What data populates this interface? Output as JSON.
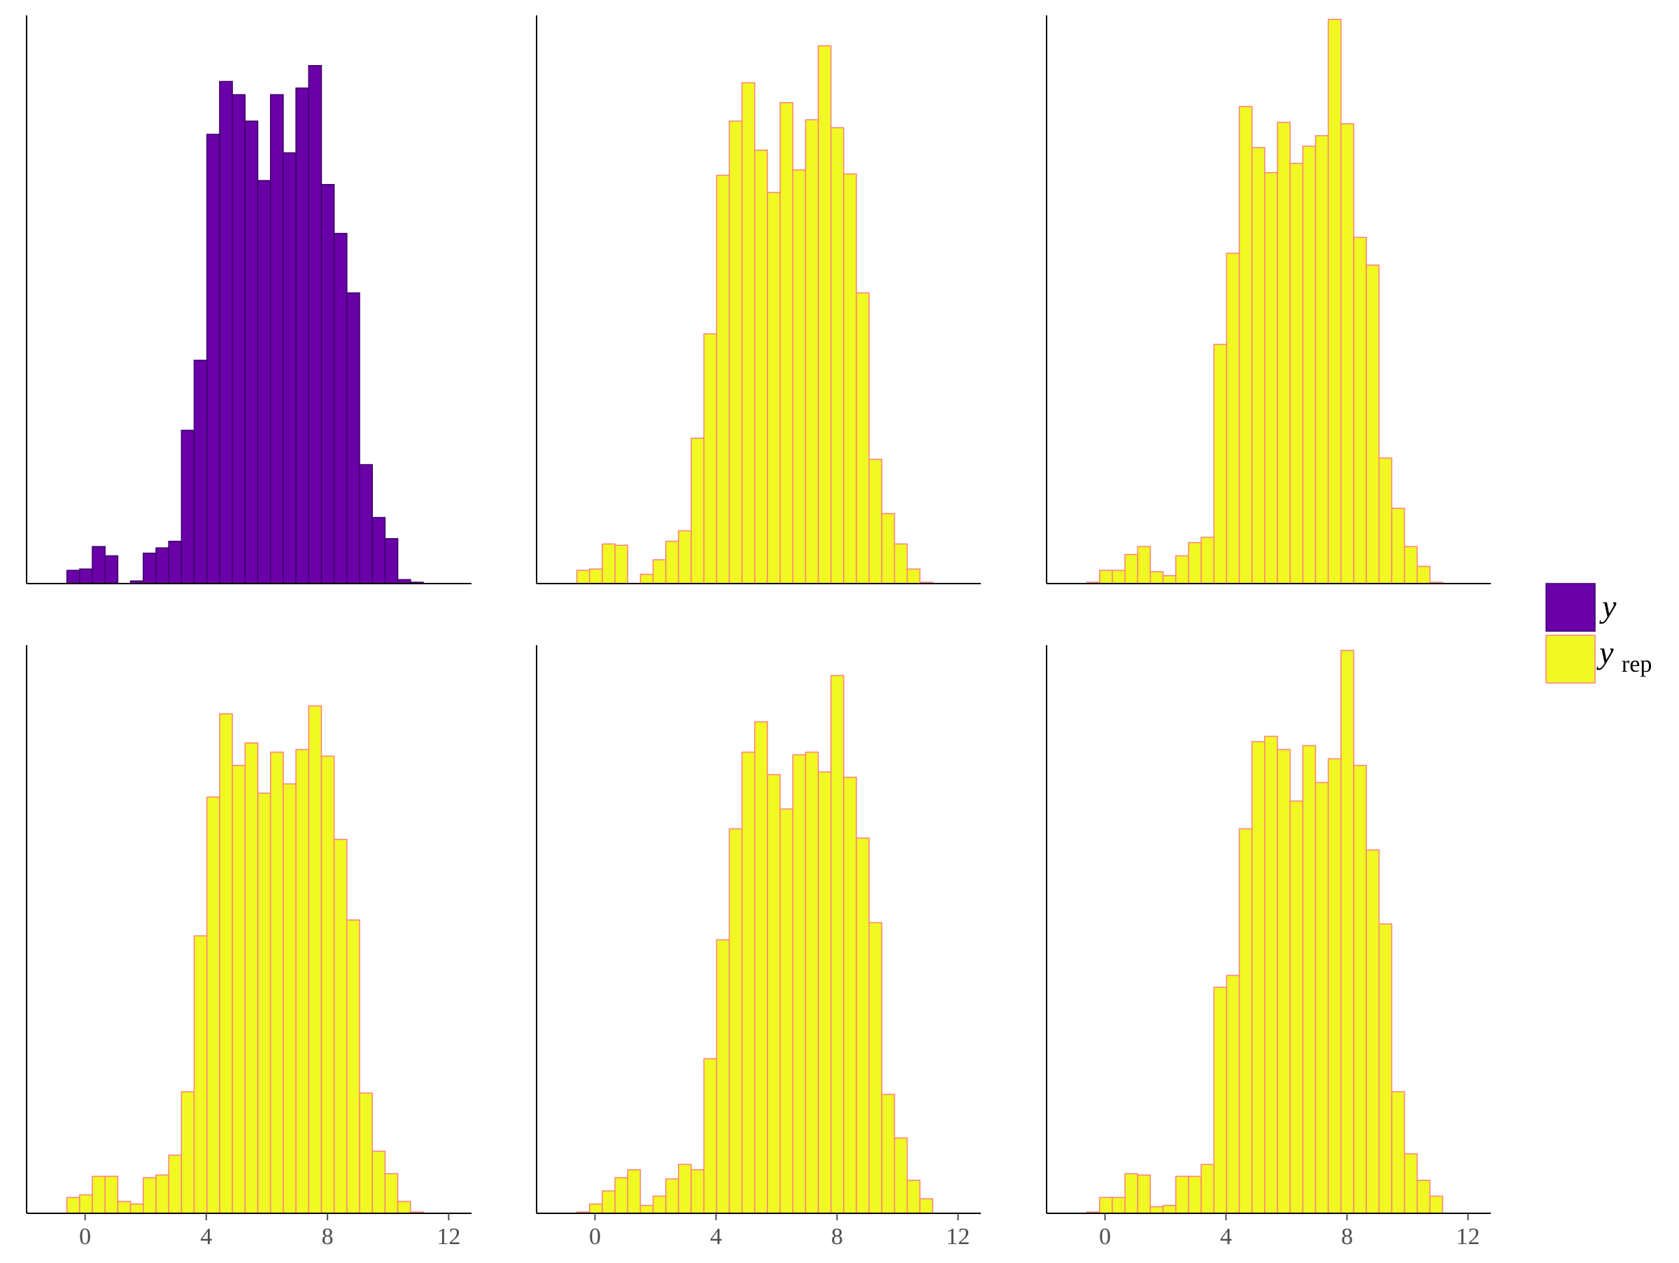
{
  "chart_data": [
    {
      "type": "bar",
      "panel": "y",
      "series_name": "y",
      "bin_start": -0.6,
      "bin_width": 0.42,
      "x_ticks": [
        "0",
        "4",
        "8",
        "12"
      ],
      "xlim": [
        -1.7,
        12.8
      ],
      "values": [
        10,
        11,
        28,
        21,
        0,
        2,
        23,
        27,
        32,
        116,
        169,
        340,
        380,
        370,
        350,
        305,
        370,
        326,
        375,
        392,
        302,
        265,
        220,
        90,
        50,
        34,
        3,
        1
      ]
    },
    {
      "type": "bar",
      "panel": "y_rep_1",
      "series_name": "y_rep",
      "bin_start": -0.6,
      "bin_width": 0.42,
      "x_ticks": [
        "0",
        "4",
        "8",
        "12"
      ],
      "xlim": [
        -1.7,
        12.8
      ],
      "values": [
        10,
        11,
        30,
        29,
        0,
        7,
        18,
        32,
        40,
        110,
        189,
        309,
        350,
        379,
        328,
        296,
        364,
        313,
        351,
        407,
        345,
        310,
        220,
        94,
        53,
        30,
        11,
        1
      ]
    },
    {
      "type": "bar",
      "panel": "y_rep_2",
      "series_name": "y_rep",
      "bin_start": -0.6,
      "bin_width": 0.42,
      "x_ticks": [
        "0",
        "4",
        "8",
        "12"
      ],
      "xlim": [
        -1.7,
        12.8
      ],
      "values": [
        1,
        10,
        10,
        22,
        28,
        9,
        6,
        21,
        31,
        35,
        181,
        250,
        361,
        330,
        311,
        349,
        318,
        331,
        339,
        427,
        348,
        262,
        241,
        95,
        57,
        28,
        13,
        1
      ]
    },
    {
      "type": "bar",
      "panel": "y_rep_3",
      "series_name": "y_rep",
      "bin_start": -0.6,
      "bin_width": 0.42,
      "x_ticks": [
        "0",
        "4",
        "8",
        "12"
      ],
      "xlim": [
        -1.7,
        12.8
      ],
      "values": [
        12,
        14,
        28,
        28,
        9,
        7,
        27,
        29,
        44,
        92,
        210,
        315,
        378,
        339,
        356,
        318,
        349,
        325,
        351,
        384,
        346,
        283,
        222,
        91,
        47,
        30,
        9,
        1
      ]
    },
    {
      "type": "bar",
      "panel": "y_rep_4",
      "series_name": "y_rep",
      "bin_start": -0.6,
      "bin_width": 0.42,
      "x_ticks": [
        "0",
        "4",
        "8",
        "12"
      ],
      "xlim": [
        -1.7,
        12.8
      ],
      "values": [
        1,
        7,
        17,
        27,
        33,
        6,
        13,
        26,
        37,
        33,
        117,
        207,
        291,
        349,
        372,
        332,
        306,
        347,
        349,
        334,
        407,
        330,
        284,
        220,
        90,
        57,
        25,
        11
      ]
    },
    {
      "type": "bar",
      "panel": "y_rep_5",
      "series_name": "y_rep",
      "bin_start": -0.6,
      "bin_width": 0.42,
      "x_ticks": [
        "0",
        "4",
        "8",
        "12"
      ],
      "xlim": [
        -1.7,
        12.8
      ],
      "values": [
        1,
        12,
        12,
        30,
        29,
        5,
        6,
        28,
        28,
        37,
        171,
        180,
        291,
        357,
        361,
        351,
        312,
        354,
        326,
        344,
        426,
        339,
        275,
        219,
        92,
        45,
        25,
        13
      ]
    }
  ],
  "legend": {
    "items": [
      {
        "label": "y",
        "color": "#6a00a8"
      },
      {
        "label": "y",
        "subscript": "rep",
        "color": "#f0f921"
      }
    ]
  },
  "colors": {
    "y_fill": "#6a00a8",
    "y_stroke": "#3b0066",
    "yrep_fill": "#f0f921",
    "yrep_stroke": "#ff7f7f",
    "axis": "#000000",
    "tick_text": "#4d4d4d"
  }
}
